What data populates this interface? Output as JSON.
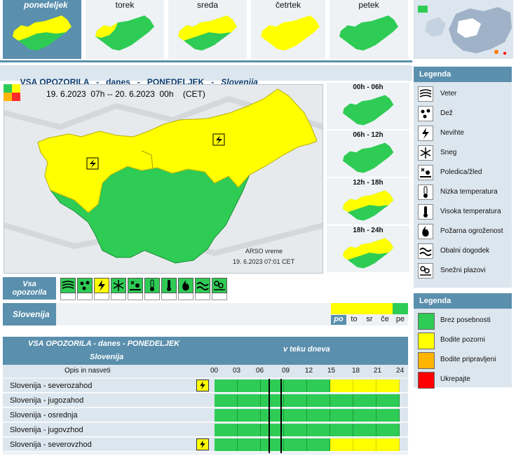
{
  "days": [
    {
      "label": "ponedeljek",
      "active": true
    },
    {
      "label": "torek",
      "active": false
    },
    {
      "label": "sreda",
      "active": false
    },
    {
      "label": "četrtek",
      "active": false
    },
    {
      "label": "petek",
      "active": false
    }
  ],
  "title": {
    "part1": "VSA OPOZORILA",
    "sep1": "-",
    "part2": "danes",
    "sep2": "-",
    "part3": "PONEDELJEK",
    "sep3": "-",
    "region": "Slovenija"
  },
  "map": {
    "date_from": "19. 6.2023  07h",
    "date_sep": "--",
    "date_to": "20. 6.2023  00h",
    "tz": "(CET)",
    "credit_name": "ARSO vreme",
    "credit_time": "19. 6.2023  07:01 CET"
  },
  "periods": [
    {
      "label": "00h - 06h",
      "warning": "green"
    },
    {
      "label": "06h - 12h",
      "warning": "green"
    },
    {
      "label": "12h - 18h",
      "warning": "yellow"
    },
    {
      "label": "18h - 24h",
      "warning": "yellow"
    }
  ],
  "legend_types": {
    "title": "Legenda",
    "items": [
      {
        "label": "Veter",
        "icon": "wind-icon"
      },
      {
        "label": "Dež",
        "icon": "rain-icon"
      },
      {
        "label": "Nevihte",
        "icon": "thunderstorm-icon"
      },
      {
        "label": "Sneg",
        "icon": "snow-icon"
      },
      {
        "label": "Poledica/žled",
        "icon": "ice-icon"
      },
      {
        "label": "Nizka temperatura",
        "icon": "low-temp-icon"
      },
      {
        "label": "Visoka temperatura",
        "icon": "high-temp-icon"
      },
      {
        "label": "Požarna ogroženost",
        "icon": "fire-icon"
      },
      {
        "label": "Obalni dogodek",
        "icon": "coastal-icon"
      },
      {
        "label": "Snežni plazovi",
        "icon": "avalanche-icon"
      }
    ]
  },
  "legend_levels": {
    "title": "Legenda",
    "items": [
      {
        "label": "Brez posebnosti",
        "color": "#2ecc55"
      },
      {
        "label": "Bodite pozorni",
        "color": "#ffff00"
      },
      {
        "label": "Bodite pripravljeni",
        "color": "#ffb400"
      },
      {
        "label": "Ukrepajte",
        "color": "#ff0000"
      }
    ]
  },
  "warnings_row": {
    "label_line1": "Vsa",
    "label_line2": "opozorila",
    "active_index": 2
  },
  "slovenija_row": {
    "label": "Slovenija",
    "days": [
      "po",
      "to",
      "sr",
      "če",
      "pe"
    ],
    "day_colors": [
      "#ffff00",
      "#ffff00",
      "#ffff00",
      "#ffff00",
      "#2ecc55"
    ]
  },
  "table": {
    "head_title": "VSA OPOZORILA - danes - PONEDELJEK",
    "head_region": "Slovenija",
    "head_timeline": "v teku dneva",
    "col_label": "Opis in nasveti",
    "ticks": [
      "00",
      "03",
      "06",
      "09",
      "12",
      "15",
      "18",
      "21",
      "24"
    ],
    "rows": [
      {
        "name": "Slovenija - severozahod",
        "icon": true,
        "yellow_from_hour": 15
      },
      {
        "name": "Slovenija - jugozahod",
        "icon": false,
        "yellow_from_hour": null
      },
      {
        "name": "Slovenija - osrednja",
        "icon": false,
        "yellow_from_hour": null
      },
      {
        "name": "Slovenija - jugovzhod",
        "icon": false,
        "yellow_from_hour": null
      },
      {
        "name": "Slovenija - severovzhod",
        "icon": true,
        "yellow_from_hour": 15
      }
    ],
    "now_hours": [
      7,
      8.5
    ]
  },
  "colors": {
    "accent": "#5a8fad",
    "green": "#2ecc55",
    "yellow": "#ffff00",
    "title_text": "#0b3c6e"
  }
}
